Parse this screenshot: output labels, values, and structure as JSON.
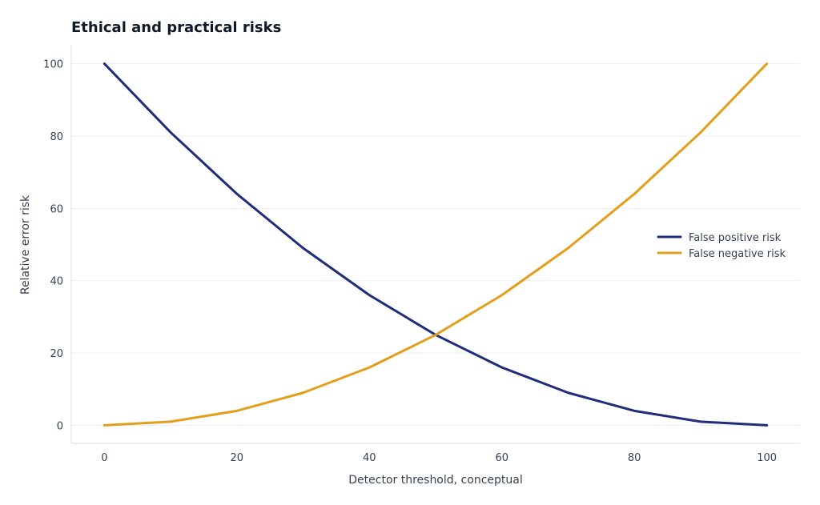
{
  "chart_data": {
    "type": "line",
    "title": "Ethical and practical risks",
    "xlabel": "Detector threshold, conceptual",
    "ylabel": "Relative error risk",
    "x": [
      0,
      10,
      20,
      30,
      40,
      50,
      60,
      70,
      80,
      90,
      100
    ],
    "xlim": [
      -5,
      105
    ],
    "ylim": [
      -5,
      105
    ],
    "xticks": [
      0,
      20,
      40,
      60,
      80,
      100
    ],
    "yticks": [
      0,
      20,
      40,
      60,
      80,
      100
    ],
    "grid": "horizontal",
    "legend_position": "right",
    "series": [
      {
        "name": "False positive risk",
        "color": "#1f2d7a",
        "values": [
          100,
          81,
          64,
          49,
          36,
          25,
          16,
          9,
          4,
          1,
          0
        ]
      },
      {
        "name": "False negative risk",
        "color": "#e39f1b",
        "values": [
          0,
          1,
          4,
          9,
          16,
          25,
          36,
          49,
          64,
          81,
          100
        ]
      }
    ]
  }
}
